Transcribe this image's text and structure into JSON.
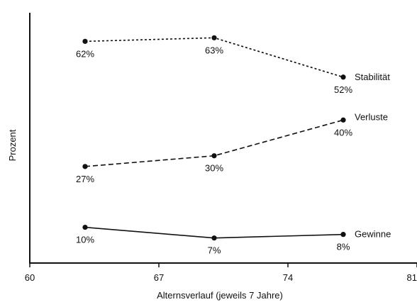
{
  "chart_data": {
    "type": "line",
    "title": "",
    "xlabel": "Alternsverlauf  (jeweils 7 Jahre)",
    "ylabel": "Prozent",
    "xlim": [
      60,
      81
    ],
    "ylim": [
      0,
      70
    ],
    "x_ticks": [
      60,
      67,
      74,
      81
    ],
    "x_tick_labels": [
      "60",
      "67",
      "74",
      "81"
    ],
    "grid": false,
    "legend": "inline labels at right end of each line",
    "series": [
      {
        "name": "Stabilität",
        "line_style": "dotted",
        "x": [
          63,
          70,
          77
        ],
        "values": [
          62,
          63,
          52
        ],
        "labels": [
          "62%",
          "63%",
          "52%"
        ]
      },
      {
        "name": "Verluste",
        "line_style": "dashed",
        "x": [
          63,
          70,
          77
        ],
        "values": [
          27,
          30,
          40
        ],
        "labels": [
          "27%",
          "30%",
          "40%"
        ]
      },
      {
        "name": "Gewinne",
        "line_style": "solid",
        "x": [
          63,
          70,
          77
        ],
        "values": [
          10,
          7,
          8
        ],
        "labels": [
          "10%",
          "7%",
          "8%"
        ]
      }
    ]
  },
  "colors": {
    "ink": "#111111",
    "background": "#ffffff"
  }
}
